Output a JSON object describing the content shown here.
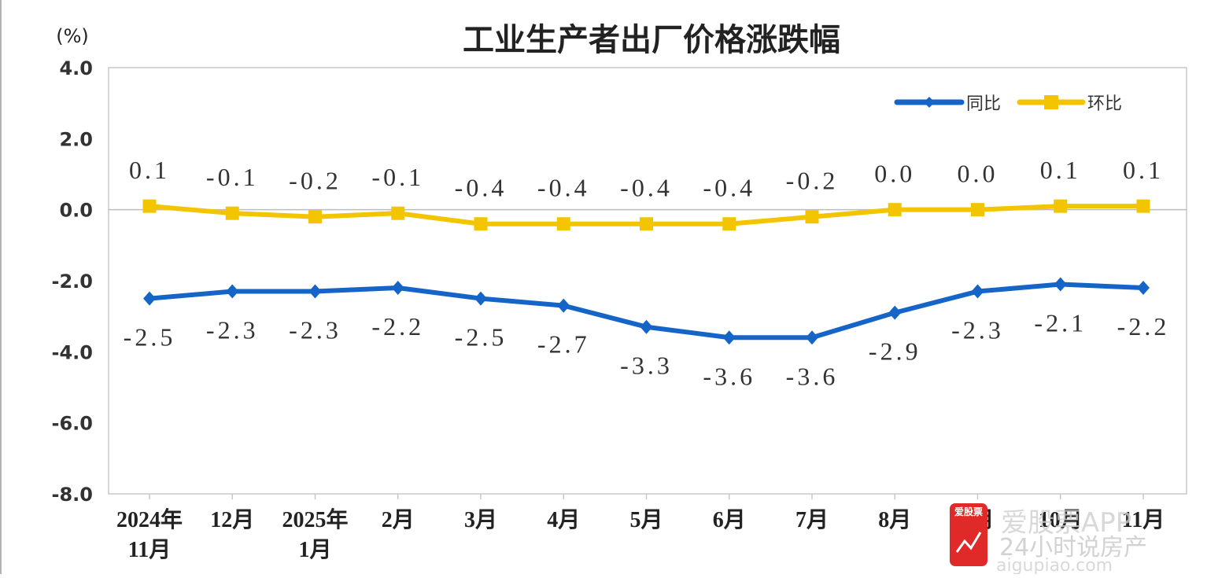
{
  "chart_data": {
    "type": "line",
    "title": "工业生产者出厂价格涨跌幅",
    "y_unit": "(%)",
    "ylim": [
      -8.0,
      4.0
    ],
    "yticks": [
      4.0,
      2.0,
      0.0,
      -2.0,
      -4.0,
      -6.0,
      -8.0
    ],
    "ytick_labels": [
      "4.0",
      "2.0",
      "0.0",
      "-2.0",
      "-4.0",
      "-6.0",
      "-8.0"
    ],
    "categories": [
      [
        "2024年",
        "11月"
      ],
      [
        "12月"
      ],
      [
        "2025年",
        "1月"
      ],
      [
        "2月"
      ],
      [
        "3月"
      ],
      [
        "4月"
      ],
      [
        "5月"
      ],
      [
        "6月"
      ],
      [
        "7月"
      ],
      [
        "8月"
      ],
      [
        "9月"
      ],
      [
        "10月"
      ],
      [
        "11月"
      ]
    ],
    "grid": false,
    "zero_line": true,
    "legend_position": "top-right",
    "series": [
      {
        "name": "同比",
        "color": "#1565c8",
        "marker": "diamond",
        "label_position": "below",
        "values": [
          -2.5,
          -2.3,
          -2.3,
          -2.2,
          -2.5,
          -2.7,
          -3.3,
          -3.6,
          -3.6,
          -2.9,
          -2.3,
          -2.1,
          -2.2
        ],
        "labels": [
          "-2.5",
          "-2.3",
          "-2.3",
          "-2.2",
          "-2.5",
          "-2.7",
          "-3.3",
          "-3.6",
          "-3.6",
          "-2.9",
          "-2.3",
          "-2.1",
          "-2.2"
        ]
      },
      {
        "name": "环比",
        "color": "#f2c500",
        "marker": "square",
        "label_position": "above",
        "values": [
          0.1,
          -0.1,
          -0.2,
          -0.1,
          -0.4,
          -0.4,
          -0.4,
          -0.4,
          -0.2,
          0.0,
          0.0,
          0.1,
          0.1
        ],
        "labels": [
          "0.1",
          "-0.1",
          "-0.2",
          "-0.1",
          "-0.4",
          "-0.4",
          "-0.4",
          "-0.4",
          "-0.2",
          "0.0",
          "0.0",
          "0.1",
          "0.1"
        ]
      }
    ]
  },
  "watermark": {
    "logo_text": "爱股票",
    "brand_text": "爱股票APP",
    "subtitle_text": "24小时说房产",
    "url_text": "aigupiao.com",
    "logo_color": "#e02a2a"
  }
}
